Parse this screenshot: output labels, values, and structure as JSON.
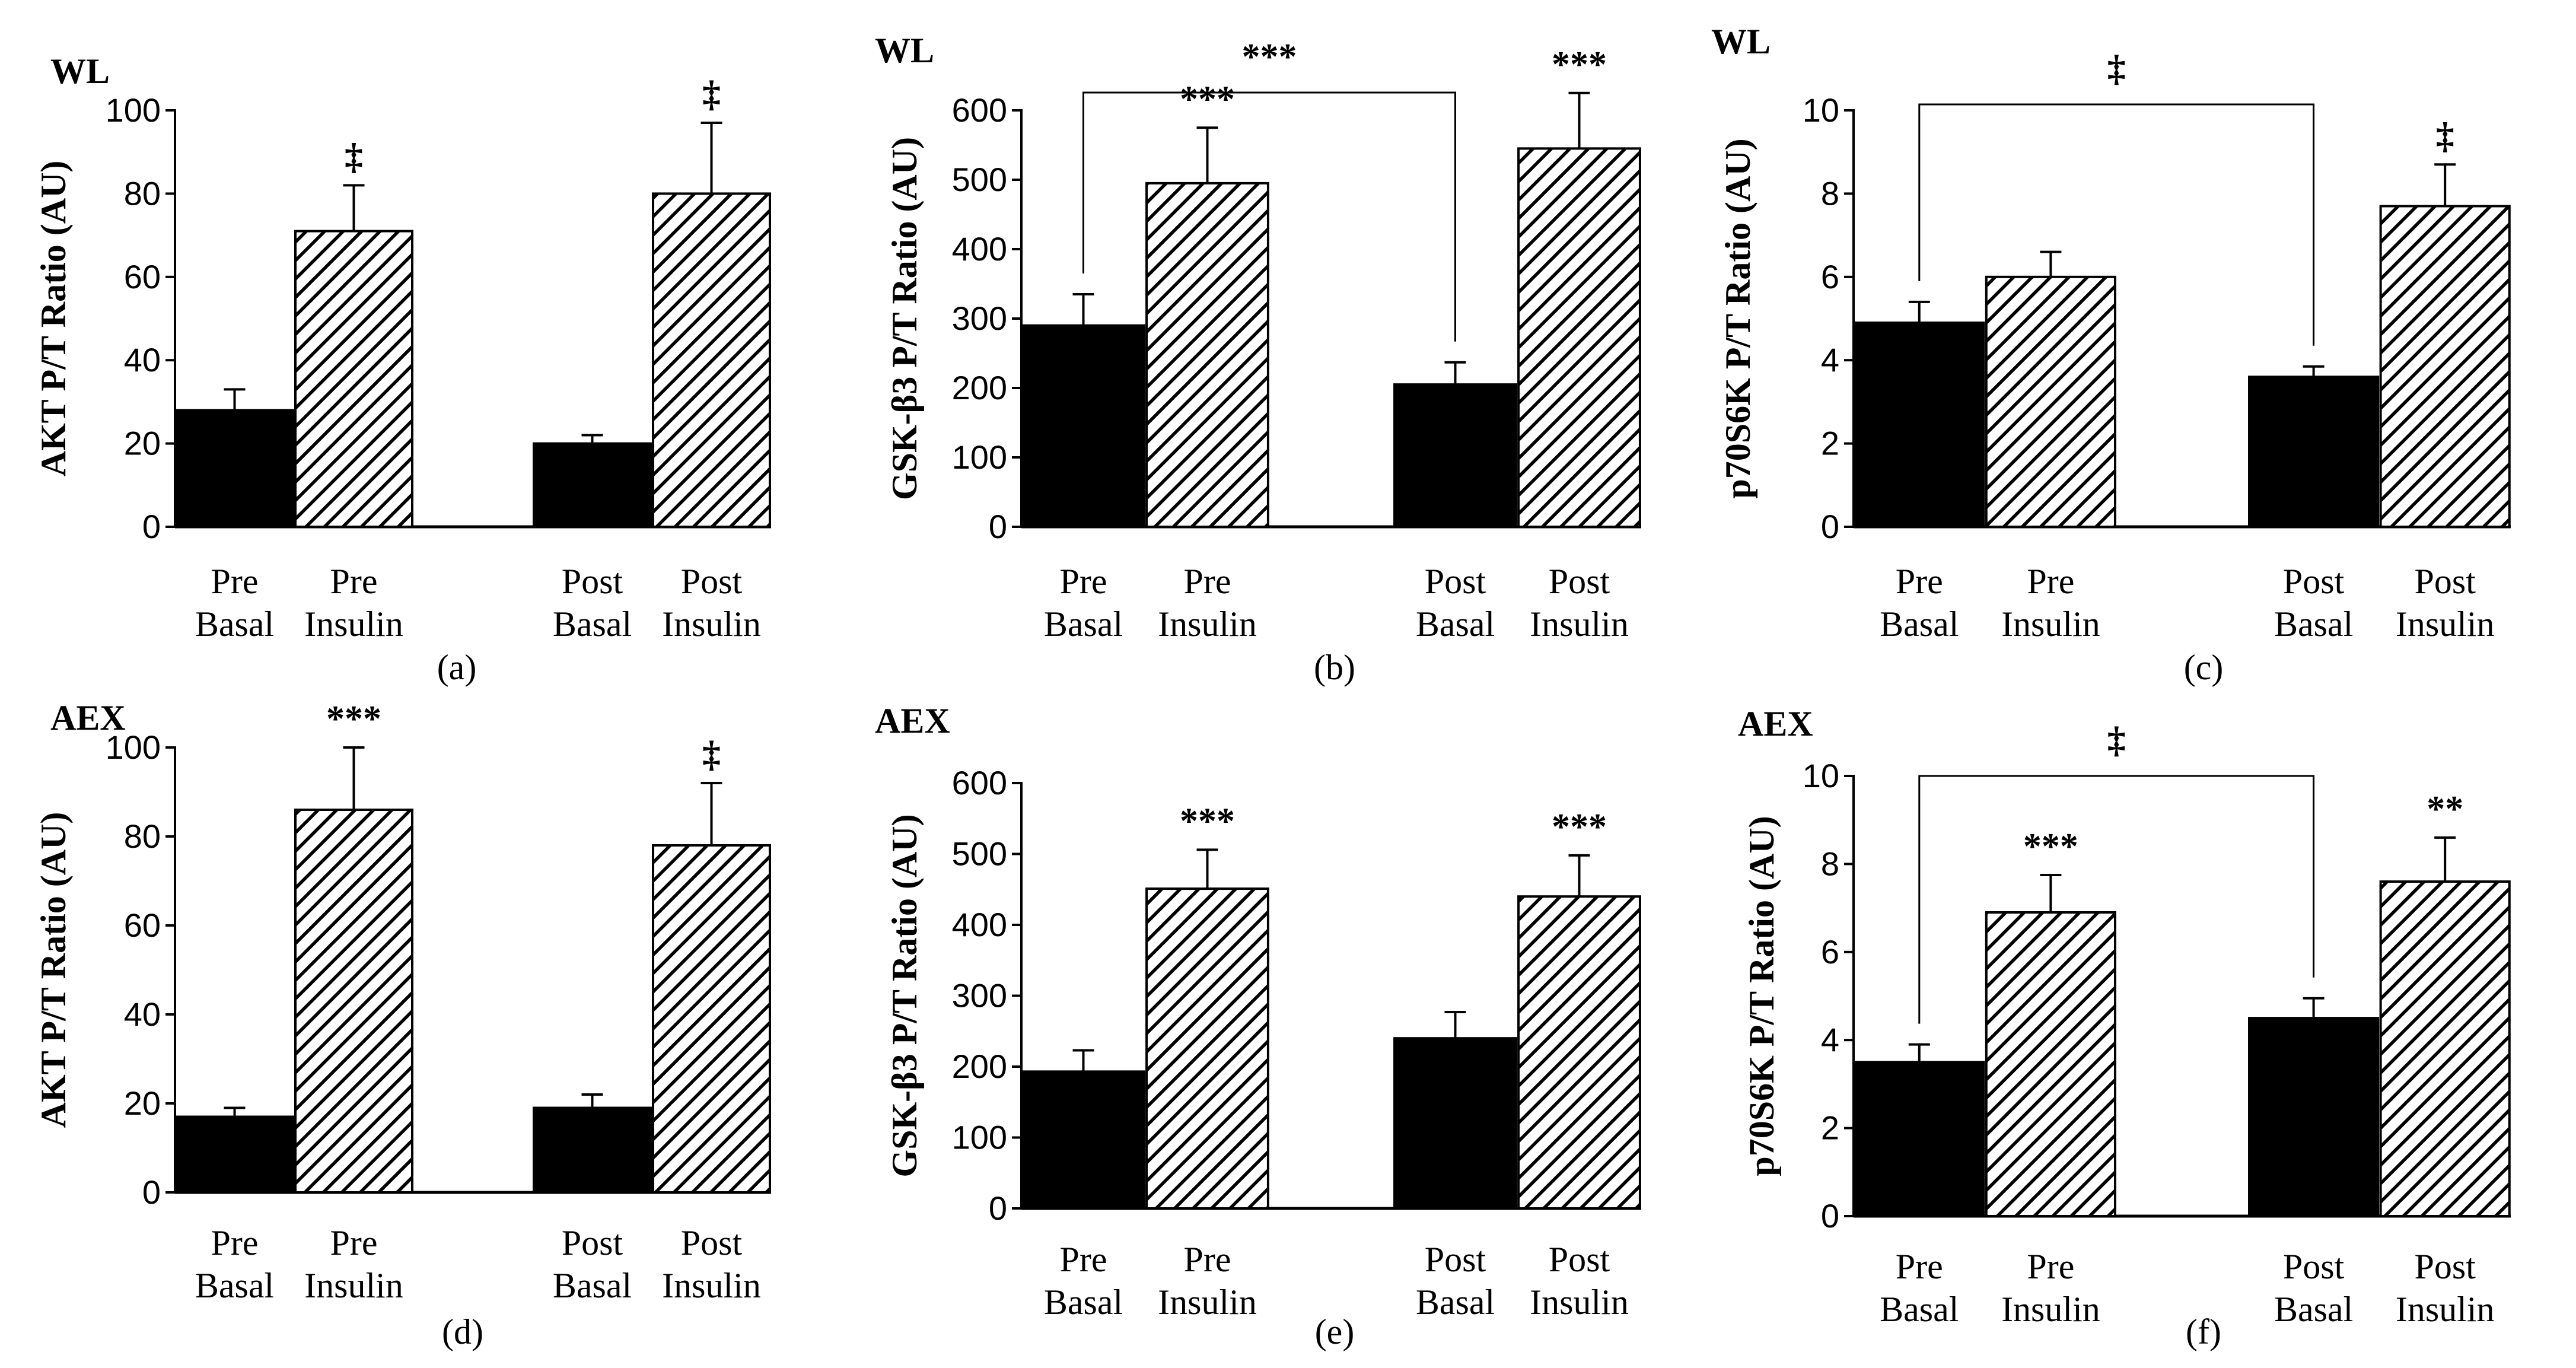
{
  "figure": {
    "styles": {
      "basal_fill": "#000000",
      "insulin_pattern": "diagonal-hatch",
      "axis_color": "#000000"
    }
  },
  "chart_data": [
    {
      "type": "bar",
      "panel": "(a)",
      "title": "WL",
      "ylabel": "AKT P/T Ratio (AU)",
      "ylim": [
        0,
        100
      ],
      "yticks": [
        "0",
        "20",
        "40",
        "60",
        "80",
        "100"
      ],
      "categories": [
        "Pre Basal",
        "Pre Insulin",
        "Post Basal",
        "Post Insulin"
      ],
      "category_lines": [
        [
          "Pre",
          "Basal"
        ],
        [
          "Pre",
          "Insulin"
        ],
        [
          "Post",
          "Basal"
        ],
        [
          "Post",
          "Insulin"
        ]
      ],
      "values": [
        28,
        71,
        20,
        80
      ],
      "errors": [
        5,
        11,
        2,
        17
      ],
      "bar_annotations": [
        "",
        "‡",
        "",
        "‡"
      ],
      "bracket": null
    },
    {
      "type": "bar",
      "panel": "(b)",
      "title": "WL",
      "ylabel": "GSK-β3 P/T Ratio (AU)",
      "ylim": [
        0,
        600
      ],
      "yticks": [
        "0",
        "100",
        "200",
        "300",
        "400",
        "500",
        "600"
      ],
      "categories": [
        "Pre Basal",
        "Pre Insulin",
        "Post Basal",
        "Post Insulin"
      ],
      "category_lines": [
        [
          "Pre",
          "Basal"
        ],
        [
          "Pre",
          "Insulin"
        ],
        [
          "Post",
          "Basal"
        ],
        [
          "Post",
          "Insulin"
        ]
      ],
      "values": [
        290,
        495,
        205,
        545
      ],
      "errors": [
        45,
        80,
        32,
        80
      ],
      "bar_annotations": [
        "",
        "***",
        "",
        "***"
      ],
      "bracket": {
        "from": 0,
        "to": 2,
        "label": "***"
      }
    },
    {
      "type": "bar",
      "panel": "(c)",
      "title": "WL",
      "ylabel": "p70S6K P/T Ratio (AU)",
      "ylim": [
        0,
        10
      ],
      "yticks": [
        "0",
        "2",
        "4",
        "6",
        "8",
        "10"
      ],
      "categories": [
        "Pre Basal",
        "Pre Insulin",
        "Post Basal",
        "Post Insulin"
      ],
      "category_lines": [
        [
          "Pre",
          "Basal"
        ],
        [
          "Pre",
          "Insulin"
        ],
        [
          "Post",
          "Basal"
        ],
        [
          "Post",
          "Insulin"
        ]
      ],
      "values": [
        4.9,
        6.0,
        3.6,
        7.7
      ],
      "errors": [
        0.5,
        0.6,
        0.25,
        1.0
      ],
      "bar_annotations": [
        "",
        "",
        "",
        "‡"
      ],
      "bracket": {
        "from": 0,
        "to": 2,
        "label": "‡"
      }
    },
    {
      "type": "bar",
      "panel": "(d)",
      "title": "AEX",
      "ylabel": "AKT P/T Ratio (AU)",
      "ylim": [
        0,
        100
      ],
      "yticks": [
        "0",
        "20",
        "40",
        "60",
        "80",
        "100"
      ],
      "categories": [
        "Pre Basal",
        "Pre Insulin",
        "Post Basal",
        "Post Insulin"
      ],
      "category_lines": [
        [
          "Pre",
          "Basal"
        ],
        [
          "Pre",
          "Insulin"
        ],
        [
          "Post",
          "Basal"
        ],
        [
          "Post",
          "Insulin"
        ]
      ],
      "values": [
        17,
        86,
        19,
        78
      ],
      "errors": [
        2,
        14,
        3,
        14
      ],
      "bar_annotations": [
        "",
        "***",
        "",
        "‡"
      ],
      "bracket": null
    },
    {
      "type": "bar",
      "panel": "(e)",
      "title": "AEX",
      "ylabel": "GSK-β3 P/T Ratio (AU)",
      "ylim": [
        0,
        600
      ],
      "yticks": [
        "0",
        "100",
        "200",
        "300",
        "400",
        "500",
        "600"
      ],
      "categories": [
        "Pre Basal",
        "Pre Insulin",
        "Post Basal",
        "Post Insulin"
      ],
      "category_lines": [
        [
          "Pre",
          "Basal"
        ],
        [
          "Pre",
          "Insulin"
        ],
        [
          "Post",
          "Basal"
        ],
        [
          "Post",
          "Insulin"
        ]
      ],
      "values": [
        193,
        451,
        240,
        440
      ],
      "errors": [
        30,
        55,
        37,
        58
      ],
      "bar_annotations": [
        "",
        "***",
        "",
        "***"
      ],
      "bracket": null
    },
    {
      "type": "bar",
      "panel": "(f)",
      "title": "AEX",
      "ylabel": "p70S6K P/T Ratio (AU)",
      "ylim": [
        0,
        10
      ],
      "yticks": [
        "0",
        "2",
        "4",
        "6",
        "8",
        "10"
      ],
      "categories": [
        "Pre Basal",
        "Pre Insulin",
        "Post Basal",
        "Post Insulin"
      ],
      "category_lines": [
        [
          "Pre",
          "Basal"
        ],
        [
          "Pre",
          "Insulin"
        ],
        [
          "Post",
          "Basal"
        ],
        [
          "Post",
          "Insulin"
        ]
      ],
      "values": [
        3.5,
        6.9,
        4.5,
        7.6
      ],
      "errors": [
        0.4,
        0.85,
        0.45,
        1.0
      ],
      "bar_annotations": [
        "",
        "***",
        "",
        "**"
      ],
      "bracket": {
        "from": 0,
        "to": 2,
        "label": "‡"
      }
    }
  ]
}
